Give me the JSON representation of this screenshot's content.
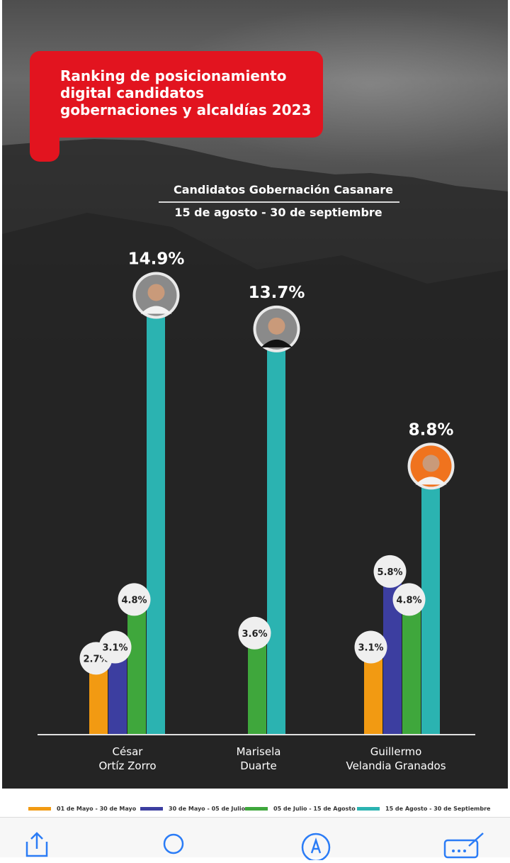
{
  "title": "Ranking de posicionamiento\ndigital candidatos\ngobernaciones y alcaldías 2023",
  "subtitle_line1": "Candidatos Gobernación Casanare",
  "subtitle_line2": "15 de agosto - 30 de septiembre",
  "colors": {
    "title_box": "#e2141f",
    "series": [
      "#f29a12",
      "#3c3ea0",
      "#3fa73c",
      "#2bb3b1"
    ],
    "label_bubble": "#efefef",
    "axis": "#e0e0e0"
  },
  "chart_data": {
    "type": "bar",
    "title": "Candidatos Gobernación Casanare",
    "subtitle": "15 de agosto - 30 de septiembre",
    "categories": [
      "César\nOrtíz Zorro",
      "Marisela\nDuarte",
      "Guillermo\nVelandia Granados"
    ],
    "series": [
      {
        "name": "01 de Mayo - 30 de Mayo",
        "values": [
          2.7,
          null,
          3.1
        ]
      },
      {
        "name": "30 de Mayo - 05 de Julio",
        "values": [
          3.1,
          null,
          5.8
        ]
      },
      {
        "name": "05 de Julio - 15 de Agosto",
        "values": [
          4.8,
          3.6,
          4.8
        ]
      },
      {
        "name": "15 de Agosto - 30 de Septiembre",
        "values": [
          14.9,
          13.7,
          8.8
        ]
      }
    ],
    "data_labels": [
      [
        "2.7%",
        null,
        "3.1%"
      ],
      [
        "3.1%",
        null,
        "5.8%"
      ],
      [
        "4.8%",
        "3.6%",
        "4.8%"
      ],
      [
        "14.9%",
        "13.7%",
        "8.8%"
      ]
    ],
    "value_unit": "%",
    "legend_position": "bottom",
    "grid": false,
    "candidate_photos": [
      "candidate-photo-cesar",
      "candidate-photo-marisela",
      "candidate-photo-guillermo"
    ]
  },
  "toolbar": {
    "items": [
      {
        "icon": "share-icon"
      },
      {
        "icon": "search-icon"
      },
      {
        "icon": "markup-icon"
      },
      {
        "icon": "edit-icon"
      }
    ]
  }
}
